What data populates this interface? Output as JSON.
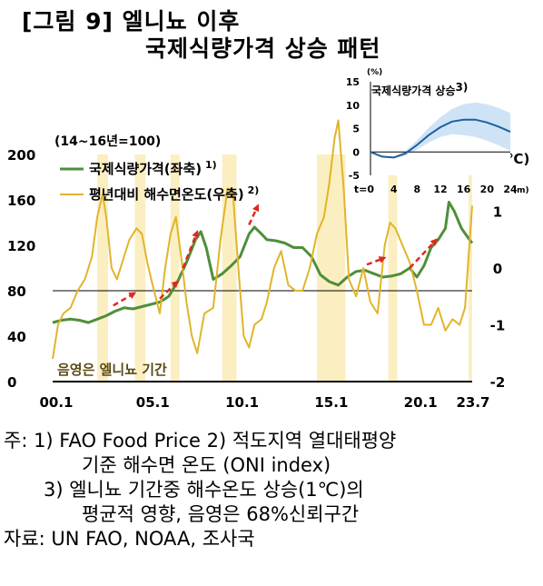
{
  "title": {
    "line1": "[그림 9] 엘니뇨 이후",
    "line2": "국제식량가격 상승 패턴"
  },
  "chart_data": [
    {
      "type": "line",
      "unit_label": "(14~16년=100)",
      "right_axis_label": "2(℃)",
      "shade_label": "음영은 엘니뇨 기간",
      "x_ticks": [
        "00.1",
        "05.1",
        "10.1",
        "15.1",
        "20.1",
        "23.7"
      ],
      "x_range": [
        2000.0,
        2023.5
      ],
      "y_left": {
        "ticks": [
          0,
          40,
          80,
          120,
          160,
          200
        ],
        "range": [
          0,
          200
        ]
      },
      "y_right": {
        "ticks": [
          -2,
          -1,
          0,
          1,
          2
        ],
        "range": [
          -2,
          2
        ]
      },
      "elnino_periods": [
        [
          2002.5,
          2003.1
        ],
        [
          2004.6,
          2005.2
        ],
        [
          2006.6,
          2007.1
        ],
        [
          2009.5,
          2010.3
        ],
        [
          2014.8,
          2016.4
        ],
        [
          2018.8,
          2019.3
        ],
        [
          2023.3,
          2023.5
        ]
      ],
      "series": [
        {
          "name": "국제식량가격(좌축)",
          "superscript": "1)",
          "axis": "left",
          "color": "#4e8f3a",
          "x": [
            2000.0,
            2000.5,
            2001.0,
            2001.5,
            2002.0,
            2002.5,
            2003.0,
            2003.5,
            2004.0,
            2004.5,
            2005.0,
            2005.5,
            2006.0,
            2006.5,
            2007.0,
            2007.5,
            2008.0,
            2008.3,
            2008.6,
            2009.0,
            2009.5,
            2010.0,
            2010.5,
            2011.0,
            2011.3,
            2011.7,
            2012.0,
            2012.5,
            2013.0,
            2013.5,
            2014.0,
            2014.5,
            2015.0,
            2015.5,
            2016.0,
            2016.5,
            2017.0,
            2017.5,
            2018.0,
            2018.5,
            2019.0,
            2019.5,
            2020.0,
            2020.4,
            2020.8,
            2021.2,
            2021.6,
            2022.0,
            2022.2,
            2022.5,
            2022.9,
            2023.3,
            2023.5
          ],
          "y": [
            52,
            54,
            55,
            54,
            52,
            55,
            58,
            62,
            65,
            64,
            66,
            68,
            70,
            75,
            88,
            105,
            125,
            132,
            118,
            90,
            95,
            102,
            110,
            130,
            136,
            130,
            125,
            124,
            122,
            118,
            118,
            110,
            94,
            88,
            85,
            92,
            97,
            98,
            95,
            92,
            93,
            95,
            100,
            92,
            102,
            118,
            125,
            135,
            158,
            150,
            135,
            126,
            122
          ]
        },
        {
          "name": "평년대비 해수면온도(우축)",
          "superscript": "2)",
          "axis": "right",
          "color": "#e2b42a",
          "x": [
            2000.0,
            2000.3,
            2000.6,
            2001.0,
            2001.4,
            2001.8,
            2002.2,
            2002.5,
            2002.8,
            2003.0,
            2003.3,
            2003.6,
            2004.0,
            2004.3,
            2004.7,
            2005.0,
            2005.3,
            2005.6,
            2006.0,
            2006.3,
            2006.6,
            2006.9,
            2007.2,
            2007.5,
            2007.8,
            2008.1,
            2008.5,
            2009.0,
            2009.4,
            2009.8,
            2010.1,
            2010.4,
            2010.7,
            2011.0,
            2011.3,
            2011.7,
            2012.0,
            2012.4,
            2012.8,
            2013.2,
            2013.6,
            2014.0,
            2014.4,
            2014.8,
            2015.2,
            2015.5,
            2015.8,
            2016.0,
            2016.3,
            2016.6,
            2017.0,
            2017.4,
            2017.8,
            2018.2,
            2018.6,
            2018.9,
            2019.2,
            2019.6,
            2020.0,
            2020.4,
            2020.8,
            2021.2,
            2021.6,
            2022.0,
            2022.4,
            2022.8,
            2023.1,
            2023.5
          ],
          "y": [
            -1.6,
            -1.0,
            -0.8,
            -0.7,
            -0.4,
            -0.2,
            0.2,
            0.9,
            1.3,
            0.9,
            0.0,
            -0.2,
            0.2,
            0.5,
            0.7,
            0.6,
            0.1,
            -0.3,
            -0.8,
            0.0,
            0.6,
            0.9,
            0.2,
            -0.6,
            -1.2,
            -1.5,
            -0.8,
            -0.7,
            0.5,
            1.4,
            1.3,
            0.0,
            -1.2,
            -1.4,
            -1.0,
            -0.9,
            -0.6,
            0.0,
            0.3,
            -0.3,
            -0.4,
            -0.4,
            0.0,
            0.6,
            0.9,
            1.5,
            2.3,
            2.6,
            1.4,
            -0.2,
            -0.5,
            0.0,
            -0.6,
            -0.8,
            0.4,
            0.8,
            0.7,
            0.4,
            0.1,
            -0.4,
            -1.0,
            -1.0,
            -0.7,
            -1.1,
            -0.9,
            -1.0,
            -0.7,
            1.1
          ]
        }
      ],
      "increase_arrows": [
        {
          "x": [
            2003.4,
            2004.6
          ],
          "y": [
            67,
            78
          ]
        },
        {
          "x": [
            2006.0,
            2007.0
          ],
          "y": [
            73,
            88
          ]
        },
        {
          "x": [
            2007.3,
            2008.1
          ],
          "y": [
            100,
            132
          ]
        },
        {
          "x": [
            2011.0,
            2011.5
          ],
          "y": [
            138,
            155
          ]
        },
        {
          "x": [
            2017.6,
            2018.6
          ],
          "y": [
            103,
            109
          ]
        },
        {
          "x": [
            2020.0,
            2021.5
          ],
          "y": [
            100,
            125
          ]
        }
      ]
    },
    {
      "type": "line",
      "title": "국제식량가격 상승",
      "superscript": "3)",
      "unit_label": "(%)",
      "x_prefix": "t=",
      "x_unit": "(m)",
      "x_ticks": [
        0,
        4,
        8,
        12,
        16,
        20,
        24
      ],
      "y_ticks": [
        -5,
        0,
        5,
        10,
        15
      ],
      "xlim": [
        0,
        24
      ],
      "ylim": [
        -5,
        15
      ],
      "series": [
        {
          "name": "평균적 영향",
          "color": "#1f5fa0",
          "x": [
            0,
            2,
            4,
            6,
            8,
            10,
            12,
            14,
            16,
            18,
            20,
            22,
            24
          ],
          "y": [
            0.0,
            -1.0,
            -1.2,
            -0.3,
            1.5,
            3.6,
            5.3,
            6.5,
            6.9,
            6.9,
            6.3,
            5.4,
            4.3
          ],
          "ci_lower": [
            0.0,
            -1.2,
            -1.4,
            -0.8,
            0.5,
            2.0,
            3.2,
            3.8,
            3.6,
            3.2,
            2.4,
            1.4,
            0.3
          ],
          "ci_upper": [
            0.0,
            -0.8,
            -1.0,
            0.2,
            2.5,
            5.2,
            7.4,
            9.2,
            10.2,
            10.6,
            10.2,
            9.4,
            8.3
          ],
          "ci_color": "#cfe3f7"
        }
      ]
    }
  ],
  "notes": [
    "주: 1) FAO Food Price 2) 적도지역 열대태평양",
    "기준 해수면 온도 (ONI index)",
    "3) 엘니뇨 기간중 해수온도 상승(1℃)의",
    "평균적 영향, 음영은 68%신뢰구간",
    "자료: UN FAO, NOAA, 조사국"
  ]
}
